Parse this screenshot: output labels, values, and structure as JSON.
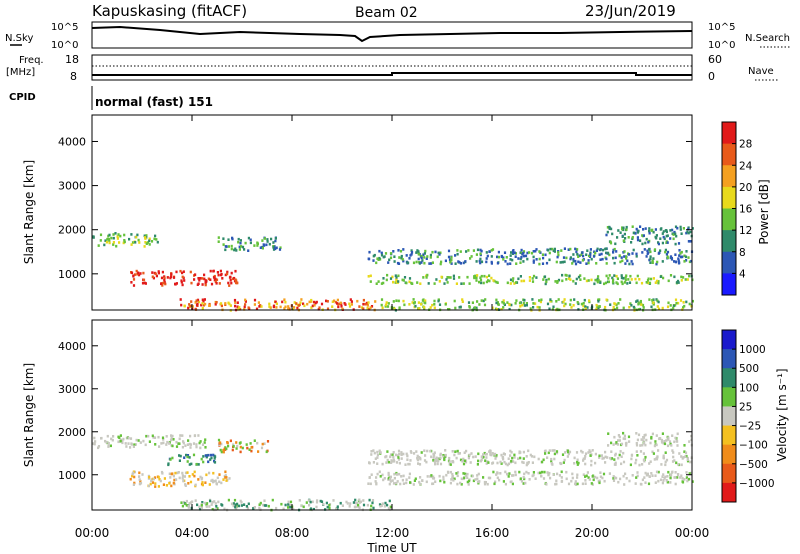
{
  "header": {
    "station": "Kapuskasing (fitACF)",
    "beam": "Beam 02",
    "date": "23/Jun/2019"
  },
  "panels": {
    "nsky_label": "N.Sky",
    "nsearch_label": "N.Search",
    "freq_label": "Freq.",
    "freq_unit": "[MHz]",
    "nave_label": "Nave",
    "cpid_label": "CPID",
    "cpid_value": "normal (fast) 151",
    "noise_ticks_left": [
      "10^5",
      "10^0"
    ],
    "noise_ticks_right": [
      "10^5",
      "10^0"
    ],
    "freq_ticks": [
      "18",
      "8"
    ],
    "nave_ticks": [
      "60",
      "0"
    ]
  },
  "chart_data": [
    {
      "type": "heatmap",
      "name": "power",
      "ylabel": "Slant Range [km]",
      "yticks": [
        "1000",
        "2000",
        "3000",
        "4000"
      ],
      "ylim": [
        180,
        4600
      ],
      "colorbar_label": "Power [dB]",
      "colorbar_ticks": [
        "4",
        "8",
        "12",
        "16",
        "20",
        "24",
        "28"
      ],
      "colors": [
        "#1a1aff",
        "#2c57b5",
        "#2f8a6a",
        "#66c23a",
        "#e8d91c",
        "#f4a020",
        "#e85a1a",
        "#e11a1a"
      ],
      "regions": [
        {
          "t0": 0.0,
          "t1": 2.6,
          "r0": 1650,
          "r1": 1950,
          "level": "green-yellow"
        },
        {
          "t0": 1.5,
          "t1": 5.8,
          "r0": 750,
          "r1": 1100,
          "level": "red"
        },
        {
          "t0": 5.0,
          "t1": 7.5,
          "r0": 1550,
          "r1": 1850,
          "level": "green"
        },
        {
          "t0": 3.5,
          "t1": 11.5,
          "r0": 200,
          "r1": 450,
          "level": "red-orange"
        },
        {
          "t0": 11.5,
          "t1": 24.0,
          "r0": 200,
          "r1": 450,
          "level": "green-yellow"
        },
        {
          "t0": 11.0,
          "t1": 24.0,
          "r0": 800,
          "r1": 1000,
          "level": "green-yellow"
        },
        {
          "t0": 11.0,
          "t1": 24.0,
          "r0": 1250,
          "r1": 1600,
          "level": "blue-green"
        },
        {
          "t0": 20.5,
          "t1": 24.0,
          "r0": 1700,
          "r1": 2100,
          "level": "green"
        }
      ]
    },
    {
      "type": "heatmap",
      "name": "velocity",
      "ylabel": "Slant Range [km]",
      "yticks": [
        "1000",
        "2000",
        "3000",
        "4000"
      ],
      "ylim": [
        180,
        4600
      ],
      "colorbar_label": "Velocity [m s⁻¹]",
      "colorbar_ticks": [
        "1000",
        "500",
        "100",
        "25",
        "−25",
        "−100",
        "−500",
        "−1000"
      ],
      "colors": [
        "#1a1acc",
        "#2c57b5",
        "#2f8a6a",
        "#66c23a",
        "#c8c8c0",
        "#f4c020",
        "#f08c1a",
        "#e85a1a",
        "#e11a1a"
      ],
      "regions": [
        {
          "t0": 0.0,
          "t1": 4.5,
          "r0": 1650,
          "r1": 1950,
          "level": "grey"
        },
        {
          "t0": 1.5,
          "t1": 5.5,
          "r0": 750,
          "r1": 1100,
          "level": "grey-yellow"
        },
        {
          "t0": 3.0,
          "t1": 5.0,
          "r0": 1250,
          "r1": 1500,
          "level": "green"
        },
        {
          "t0": 5.0,
          "t1": 7.0,
          "r0": 1550,
          "r1": 1850,
          "level": "grey-orange"
        },
        {
          "t0": 3.5,
          "t1": 12.0,
          "r0": 200,
          "r1": 450,
          "level": "grey-green"
        },
        {
          "t0": 11.0,
          "t1": 24.0,
          "r0": 800,
          "r1": 1100,
          "level": "grey"
        },
        {
          "t0": 11.0,
          "t1": 24.0,
          "r0": 1250,
          "r1": 1600,
          "level": "grey"
        },
        {
          "t0": 20.5,
          "t1": 24.0,
          "r0": 1700,
          "r1": 2000,
          "level": "grey"
        }
      ]
    }
  ],
  "xaxis": {
    "label": "Time UT",
    "ticks": [
      "00:00",
      "04:00",
      "08:00",
      "12:00",
      "16:00",
      "20:00",
      "00:00"
    ]
  }
}
